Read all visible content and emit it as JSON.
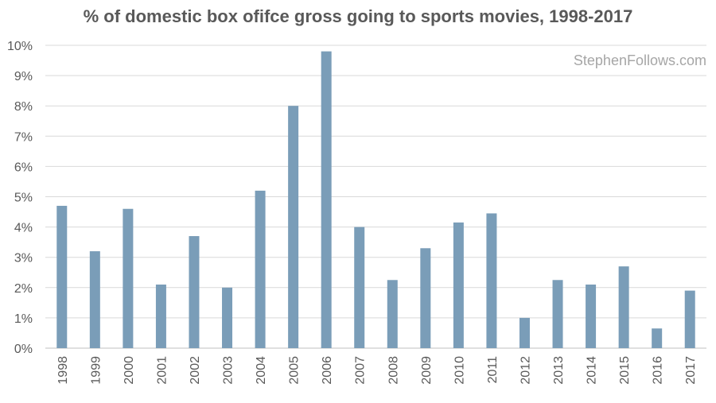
{
  "chart_data": {
    "type": "bar",
    "title": "% of domestic box ofifce gross going to sports movies, 1998-2017",
    "watermark": "StephenFollows.com",
    "xlabel": "",
    "ylabel": "",
    "ylim": [
      0,
      10
    ],
    "yticks": [
      "0%",
      "1%",
      "2%",
      "3%",
      "4%",
      "5%",
      "6%",
      "7%",
      "8%",
      "9%",
      "10%"
    ],
    "grid": true,
    "bar_color": "#7a9db8",
    "categories": [
      "1998",
      "1999",
      "2000",
      "2001",
      "2002",
      "2003",
      "2004",
      "2005",
      "2006",
      "2007",
      "2008",
      "2009",
      "2010",
      "2011",
      "2012",
      "2013",
      "2014",
      "2015",
      "2016",
      "2017"
    ],
    "values": [
      4.7,
      3.2,
      4.6,
      2.1,
      3.7,
      2.0,
      5.2,
      8.0,
      9.8,
      4.0,
      2.25,
      3.3,
      4.15,
      4.45,
      1.0,
      2.25,
      2.1,
      2.7,
      0.65,
      1.9
    ]
  }
}
